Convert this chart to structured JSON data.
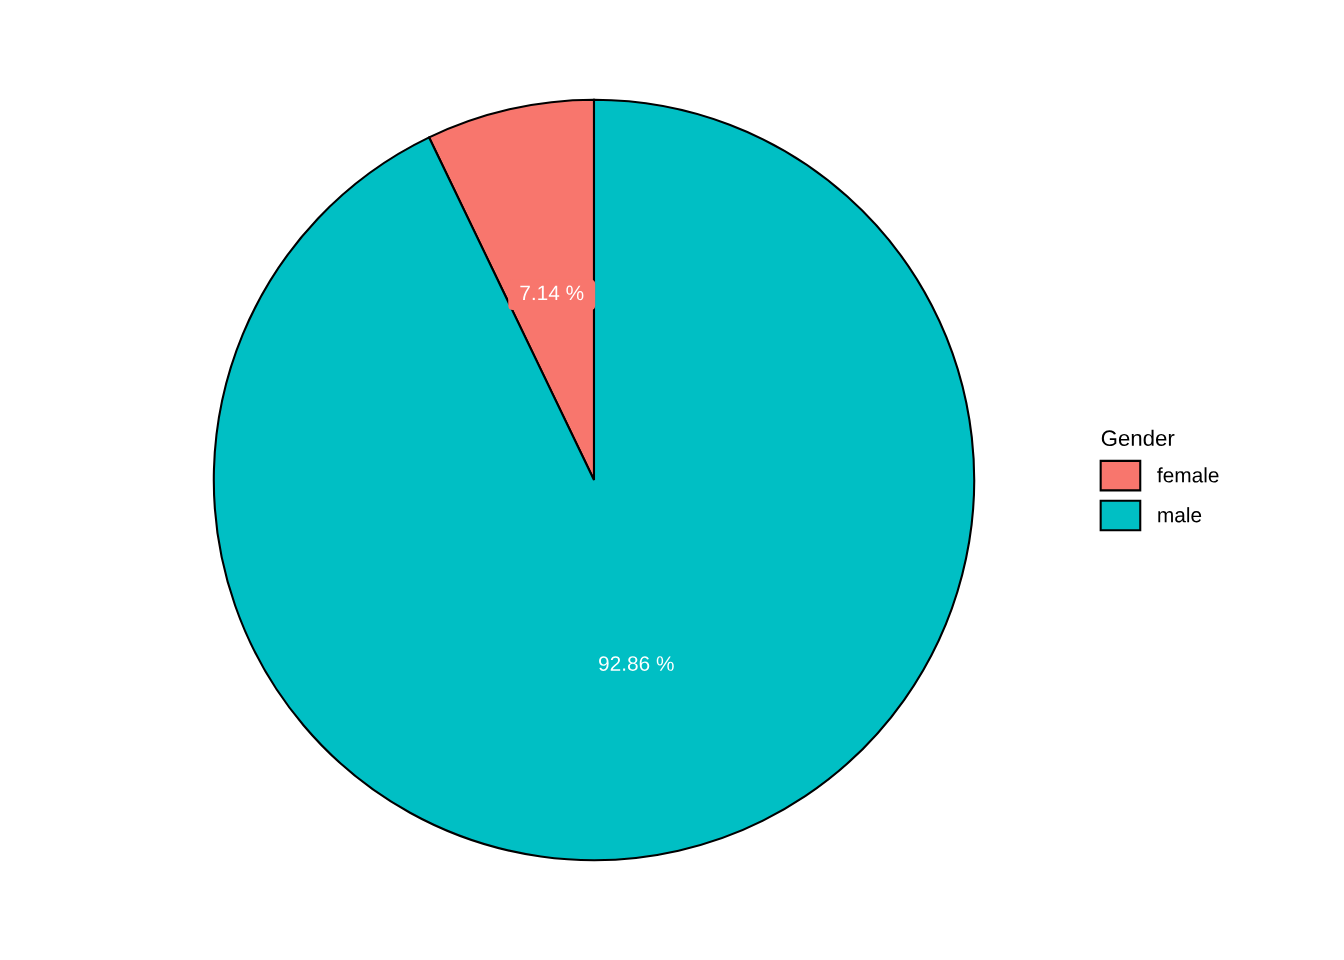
{
  "chart_data": {
    "type": "pie",
    "legend_title": "Gender",
    "legend": "right",
    "categories": [
      "female",
      "male"
    ],
    "values": [
      7.14,
      92.86
    ],
    "colors": [
      "#f8766d",
      "#00bfc4"
    ],
    "value_labels": [
      "7.14 %",
      "92.86 %"
    ]
  }
}
